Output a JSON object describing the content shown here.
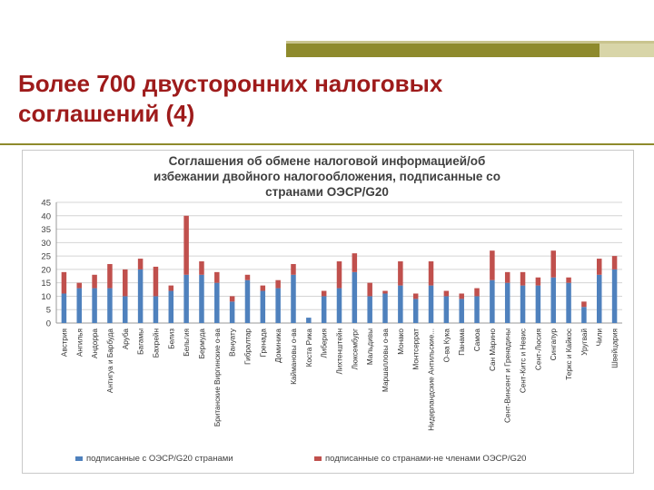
{
  "slide": {
    "title_line1": "Более 700 двусторонних налоговых",
    "title_line2": "соглашений (4)"
  },
  "chart_data": {
    "type": "bar",
    "stacked": true,
    "title_lines": [
      "Соглашения об обмене налоговой информацией/об",
      "избежании двойного налогообложения, подписанные со",
      "странами ОЭСР/G20"
    ],
    "title": "Соглашения об обмене налоговой информацией/об избежании двойного налогообложения, подписанные со странами ОЭСР/G20",
    "xlabel": "",
    "ylabel": "",
    "ylim": [
      0,
      45
    ],
    "yticks": [
      0,
      5,
      10,
      15,
      20,
      25,
      30,
      35,
      40,
      45
    ],
    "grid": true,
    "legend_position": "bottom",
    "categories": [
      "Австрия",
      "Ангилья",
      "Андорра",
      "Антигуа и Барбуда",
      "Аруба",
      "Багамы",
      "Бахрейн",
      "Белиз",
      "Бельгия",
      "Бермуда",
      "Британские Виргинские о-ва",
      "Вануату",
      "Гибралтар",
      "Гренада",
      "Доминика",
      "Каймановы о-ва",
      "Коста Рика",
      "Либерия",
      "Лихтенштейн",
      "Люксембург",
      "Мальдивы",
      "Маршалловы о-ва",
      "Монако",
      "Монтсеррат",
      "Нидерландские Антильские...",
      "О-ва Кука",
      "Панама",
      "Самоа",
      "Сан Марино",
      "Сент-Винсент и Гренадины",
      "Сент-Китс и Невис",
      "Сент-Люсия",
      "Сингапур",
      "Теркс и Кайкос",
      "Уругвай",
      "Чили",
      "Швейцария"
    ],
    "series": [
      {
        "name": "подписанные с ОЭСР/G20 странами",
        "color": "#4f81bd",
        "values": [
          11,
          13,
          13,
          13,
          10,
          20,
          10,
          12,
          18,
          18,
          15,
          8,
          16,
          12,
          13,
          18,
          2,
          10,
          13,
          19,
          10,
          11,
          14,
          9,
          14,
          10,
          9,
          10,
          16,
          15,
          14,
          14,
          17,
          15,
          6,
          18,
          20
        ]
      },
      {
        "name": "подписанные со странами-не членами ОЭСР/G20",
        "color": "#c0504d",
        "values": [
          8,
          2,
          5,
          9,
          10,
          4,
          11,
          2,
          22,
          5,
          4,
          2,
          2,
          2,
          3,
          4,
          0,
          2,
          10,
          7,
          5,
          1,
          9,
          2,
          9,
          2,
          2,
          3,
          11,
          4,
          5,
          3,
          10,
          2,
          2,
          6,
          5
        ]
      }
    ]
  }
}
